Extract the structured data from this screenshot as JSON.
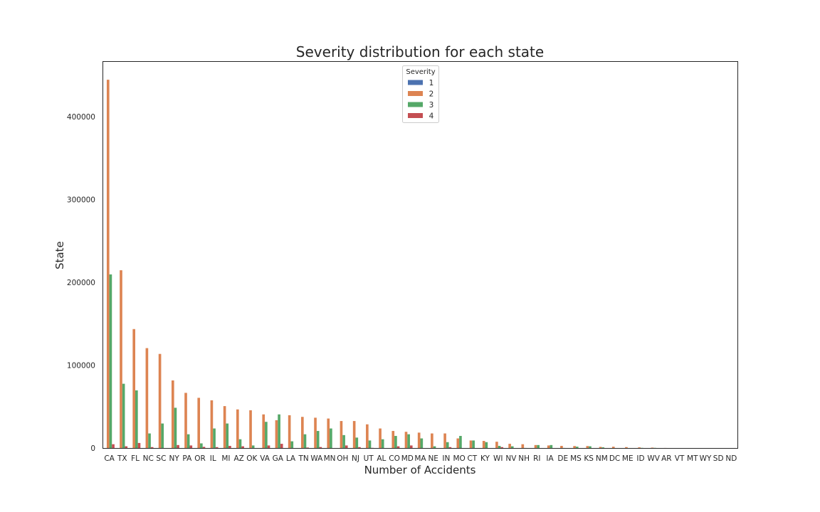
{
  "chart_data": {
    "type": "bar",
    "title": "Severity distribution for each state",
    "xlabel": "Number of Accidents",
    "ylabel": "State",
    "ylim": [
      0,
      467000
    ],
    "yticks": [
      0,
      100000,
      200000,
      300000,
      400000
    ],
    "grid": false,
    "legend": {
      "title": "Severity",
      "placement": "top-center"
    },
    "categories": [
      "CA",
      "TX",
      "FL",
      "NC",
      "SC",
      "NY",
      "PA",
      "OR",
      "IL",
      "MI",
      "AZ",
      "OK",
      "VA",
      "GA",
      "LA",
      "TN",
      "WA",
      "MN",
      "OH",
      "NJ",
      "UT",
      "AL",
      "CO",
      "MD",
      "MA",
      "NE",
      "IN",
      "MO",
      "CT",
      "KY",
      "WI",
      "NV",
      "NH",
      "RI",
      "IA",
      "DE",
      "MS",
      "KS",
      "NM",
      "DC",
      "ME",
      "ID",
      "WV",
      "AR",
      "VT",
      "MT",
      "WY",
      "SD",
      "ND"
    ],
    "series": [
      {
        "name": "1",
        "color": "#4c72b0",
        "values": [
          300,
          200,
          150,
          120,
          80,
          100,
          60,
          50,
          150,
          80,
          100,
          30,
          70,
          40,
          20,
          30,
          100,
          60,
          50,
          40,
          20,
          30,
          40,
          30,
          20,
          15,
          30,
          20,
          10,
          15,
          10,
          10,
          5,
          5,
          5,
          5,
          5,
          5,
          5,
          2,
          2,
          2,
          2,
          2,
          1,
          1,
          1,
          1,
          1
        ]
      },
      {
        "name": "2",
        "color": "#dd8452",
        "values": [
          445000,
          215000,
          144000,
          121000,
          114000,
          82000,
          67000,
          61000,
          58000,
          51000,
          47000,
          46000,
          41000,
          34000,
          40000,
          38000,
          37000,
          36000,
          33000,
          33000,
          29000,
          24000,
          21000,
          20000,
          19000,
          18000,
          18000,
          12000,
          9500,
          9000,
          8000,
          5500,
          5000,
          4000,
          3500,
          3000,
          2800,
          2800,
          1800,
          2000,
          1500,
          1200,
          900,
          500,
          400,
          300,
          300,
          200,
          100
        ]
      },
      {
        "name": "3",
        "color": "#55a868",
        "values": [
          210000,
          78000,
          70000,
          18000,
          30000,
          49000,
          17000,
          6000,
          24000,
          30000,
          11000,
          3500,
          32000,
          41000,
          8500,
          17000,
          21000,
          24000,
          16000,
          13000,
          9500,
          11000,
          15000,
          17000,
          12000,
          2500,
          7500,
          15000,
          9500,
          7500,
          3000,
          2500,
          500,
          4000,
          4000,
          500,
          2000,
          2500,
          1200,
          300,
          400,
          600,
          600,
          200,
          150,
          100,
          100,
          100,
          50
        ]
      },
      {
        "name": "4",
        "color": "#c44e52",
        "values": [
          5000,
          2500,
          6500,
          1500,
          200,
          4000,
          3500,
          1800,
          1500,
          3000,
          2500,
          100,
          3500,
          5500,
          200,
          1000,
          1600,
          300,
          3500,
          1500,
          600,
          400,
          2500,
          3500,
          300,
          200,
          1500,
          300,
          200,
          300,
          1500,
          200,
          100,
          300,
          100,
          50,
          100,
          100,
          50,
          50,
          50,
          50,
          30,
          20,
          10,
          10,
          10,
          10,
          5
        ]
      }
    ]
  }
}
